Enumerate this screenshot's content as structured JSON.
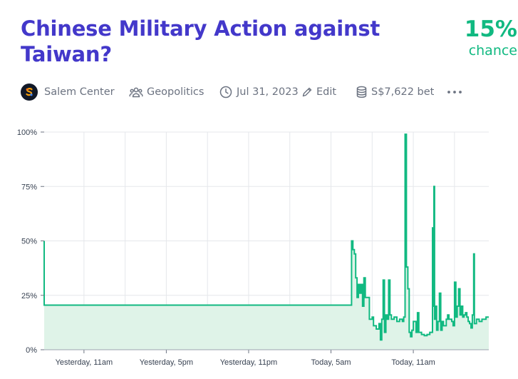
{
  "market": {
    "title": "Chinese Military Action against Taiwan?",
    "probability": "15%",
    "probability_label": "chance"
  },
  "meta": {
    "creator": "Salem Center",
    "group": "Geopolitics",
    "close_date": "Jul 31, 2023",
    "edit_label": "Edit",
    "volume": "S$7,622 bet",
    "more_icon": "more-horizontal-icon"
  },
  "colors": {
    "title": "#4338ca",
    "probability": "#11b981",
    "line": "#11b981",
    "area": "#dff3e8"
  },
  "chart_data": {
    "type": "area",
    "title": "",
    "xlabel": "",
    "ylabel": "",
    "ylim": [
      0,
      100
    ],
    "y_ticks": [
      "0%",
      "25%",
      "50%",
      "75%",
      "100%"
    ],
    "x_ticks": [
      "Yesterday, 11am",
      "Yesterday, 5pm",
      "Yesterday, 11pm",
      "Today, 5am",
      "Today, 11am"
    ],
    "grid": true,
    "x_unit": "hours relative to Yesterday, 11am",
    "series": [
      {
        "points": [
          [
            -2.9,
            50
          ],
          [
            -2.9,
            20.5
          ],
          [
            19.5,
            20.5
          ],
          [
            19.5,
            50
          ],
          [
            19.6,
            46
          ],
          [
            19.7,
            44
          ],
          [
            19.8,
            33
          ],
          [
            19.9,
            24
          ],
          [
            20.0,
            30
          ],
          [
            20.1,
            26
          ],
          [
            20.2,
            30
          ],
          [
            20.3,
            20
          ],
          [
            20.4,
            33
          ],
          [
            20.5,
            24
          ],
          [
            20.6,
            24
          ],
          [
            20.8,
            14
          ],
          [
            21.0,
            15
          ],
          [
            21.1,
            11
          ],
          [
            21.3,
            9.5
          ],
          [
            21.5,
            12
          ],
          [
            21.6,
            4.5
          ],
          [
            21.7,
            14
          ],
          [
            21.8,
            32
          ],
          [
            21.9,
            8
          ],
          [
            22.0,
            16
          ],
          [
            22.1,
            14
          ],
          [
            22.2,
            32
          ],
          [
            22.3,
            16
          ],
          [
            22.4,
            14
          ],
          [
            22.6,
            15
          ],
          [
            22.8,
            13
          ],
          [
            23.0,
            14
          ],
          [
            23.2,
            13
          ],
          [
            23.3,
            15
          ],
          [
            23.4,
            99
          ],
          [
            23.5,
            38
          ],
          [
            23.6,
            28
          ],
          [
            23.7,
            8
          ],
          [
            23.8,
            6
          ],
          [
            23.9,
            9
          ],
          [
            24.0,
            13
          ],
          [
            24.2,
            8
          ],
          [
            24.3,
            17
          ],
          [
            24.4,
            8
          ],
          [
            24.6,
            7
          ],
          [
            24.8,
            6.5
          ],
          [
            25.0,
            7
          ],
          [
            25.2,
            8
          ],
          [
            25.4,
            56
          ],
          [
            25.45,
            20
          ],
          [
            25.5,
            75
          ],
          [
            25.55,
            14
          ],
          [
            25.6,
            20
          ],
          [
            25.7,
            9
          ],
          [
            25.8,
            13
          ],
          [
            25.9,
            26
          ],
          [
            26.0,
            9
          ],
          [
            26.1,
            13
          ],
          [
            26.2,
            11
          ],
          [
            26.4,
            14
          ],
          [
            26.5,
            16
          ],
          [
            26.6,
            14
          ],
          [
            26.8,
            13
          ],
          [
            26.9,
            11
          ],
          [
            27.0,
            31
          ],
          [
            27.1,
            15
          ],
          [
            27.2,
            20
          ],
          [
            27.3,
            28
          ],
          [
            27.4,
            16
          ],
          [
            27.5,
            20
          ],
          [
            27.6,
            15
          ],
          [
            27.7,
            16
          ],
          [
            27.8,
            17
          ],
          [
            27.9,
            15
          ],
          [
            28.0,
            13
          ],
          [
            28.1,
            12
          ],
          [
            28.2,
            10
          ],
          [
            28.3,
            16
          ],
          [
            28.4,
            44
          ],
          [
            28.45,
            12
          ],
          [
            28.6,
            14
          ],
          [
            28.8,
            13
          ],
          [
            29.0,
            14
          ],
          [
            29.2,
            14
          ],
          [
            29.3,
            15
          ],
          [
            29.5,
            15
          ]
        ]
      }
    ]
  }
}
